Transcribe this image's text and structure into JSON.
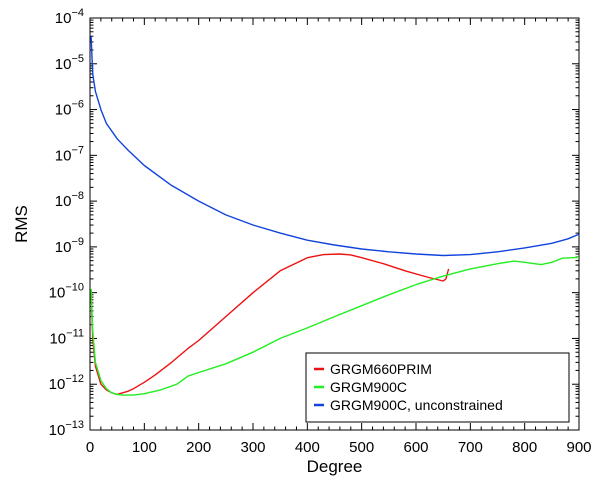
{
  "chart_data": {
    "type": "line",
    "title": "",
    "xlabel": "Degree",
    "ylabel": "RMS",
    "xlim": [
      0,
      900
    ],
    "ylim": [
      1e-13,
      0.0001
    ],
    "yscale": "log",
    "x_ticks": [
      0,
      100,
      200,
      300,
      400,
      500,
      600,
      700,
      800,
      900
    ],
    "y_ticks": [
      {
        "value": 1e-13,
        "mant": "10",
        "exp": "−13"
      },
      {
        "value": 1e-12,
        "mant": "10",
        "exp": "−12"
      },
      {
        "value": 1e-11,
        "mant": "10",
        "exp": "−11"
      },
      {
        "value": 1e-10,
        "mant": "10",
        "exp": "−10"
      },
      {
        "value": 1e-09,
        "mant": "10",
        "exp": "−9"
      },
      {
        "value": 1e-08,
        "mant": "10",
        "exp": "−8"
      },
      {
        "value": 1e-07,
        "mant": "10",
        "exp": "−7"
      },
      {
        "value": 1e-06,
        "mant": "10",
        "exp": "−6"
      },
      {
        "value": 1e-05,
        "mant": "10",
        "exp": "−5"
      },
      {
        "value": 0.0001,
        "mant": "10",
        "exp": "−4"
      }
    ],
    "grid": false,
    "legend_position": "bottom-right",
    "series": [
      {
        "name": "GRGM660PRIM",
        "color": "#ee1111",
        "x": [
          2,
          5,
          10,
          20,
          30,
          40,
          50,
          60,
          70,
          80,
          100,
          120,
          150,
          180,
          200,
          250,
          300,
          350,
          400,
          430,
          460,
          480,
          500,
          540,
          580,
          620,
          650,
          655,
          660
        ],
        "y": [
          1.2e-10,
          1e-11,
          2.5e-12,
          1e-12,
          7.5e-13,
          6.5e-13,
          6e-13,
          6.5e-13,
          7e-13,
          8e-13,
          1.1e-12,
          1.6e-12,
          3e-12,
          6e-12,
          9e-12,
          3e-11,
          1e-10,
          3e-10,
          5.8e-10,
          6.8e-10,
          7e-10,
          6.7e-10,
          5.8e-10,
          4.3e-10,
          3e-10,
          2.2e-10,
          1.8e-10,
          2e-10,
          3.3e-10
        ]
      },
      {
        "name": "GRGM900C",
        "color": "#22ee22",
        "x": [
          2,
          5,
          10,
          20,
          30,
          40,
          50,
          60,
          80,
          100,
          130,
          160,
          180,
          200,
          250,
          300,
          350,
          400,
          450,
          500,
          550,
          600,
          650,
          700,
          750,
          780,
          800,
          830,
          850,
          870,
          900
        ],
        "y": [
          1.2e-10,
          1.5e-11,
          3e-12,
          1.2e-12,
          8e-13,
          6.5e-13,
          6e-13,
          5.8e-13,
          5.8e-13,
          6.2e-13,
          7.5e-13,
          1e-12,
          1.5e-12,
          1.8e-12,
          2.8e-12,
          5e-12,
          1e-11,
          1.7e-11,
          3e-11,
          5.2e-11,
          9e-11,
          1.5e-10,
          2.3e-10,
          3.3e-10,
          4.3e-10,
          4.9e-10,
          4.6e-10,
          4.1e-10,
          4.6e-10,
          5.7e-10,
          5.9e-10
        ]
      },
      {
        "name": "GRGM900C, unconstrained",
        "color": "#1144dd",
        "x": [
          2,
          5,
          10,
          20,
          30,
          50,
          70,
          100,
          150,
          200,
          250,
          300,
          350,
          400,
          450,
          500,
          550,
          600,
          650,
          700,
          750,
          800,
          850,
          880,
          900
        ],
        "y": [
          4e-05,
          6e-06,
          2.5e-06,
          1e-06,
          5e-07,
          2.3e-07,
          1.3e-07,
          6e-08,
          2.2e-08,
          1e-08,
          5e-09,
          3e-09,
          2e-09,
          1.4e-09,
          1.1e-09,
          9e-10,
          7.8e-10,
          7e-10,
          6.5e-10,
          6.8e-10,
          7.8e-10,
          9.5e-10,
          1.2e-09,
          1.5e-09,
          1.9e-09
        ]
      }
    ]
  }
}
